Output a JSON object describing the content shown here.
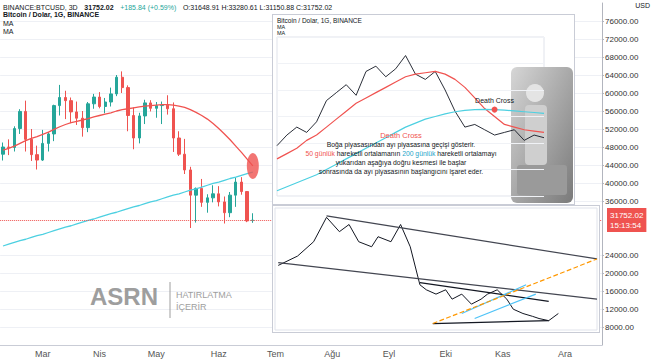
{
  "chart_data": [
    {
      "type": "candlestick",
      "title": "Bitcoin / Dolar, 1G, BINANCE",
      "header": {
        "symbol": "BINANCE:BTCUSD, 3D",
        "last": "31752.02",
        "change": "+185.84 (+0.59%)",
        "ohlc": "O:31648.91 H:33280.61 L:31150.88 C:31752.02"
      },
      "categories": [
        null,
        null,
        null,
        null,
        null,
        null,
        null,
        "Mar",
        null,
        null,
        null,
        null,
        null,
        null,
        null,
        null,
        null,
        "Nis",
        null,
        null,
        null,
        null,
        null,
        null,
        null,
        null,
        null,
        "May",
        null,
        null,
        null,
        null,
        null,
        null,
        null,
        null,
        null,
        null,
        "Haz",
        null,
        null,
        null,
        null,
        null,
        null,
        null,
        null,
        null,
        "Tem",
        null,
        null,
        null,
        null,
        null,
        null,
        null,
        null,
        null,
        "Ağu",
        null,
        null,
        null,
        null,
        null,
        null,
        null,
        null,
        null,
        "Eyl",
        null,
        null,
        null,
        null,
        null,
        null,
        null,
        null,
        null,
        "Eki",
        null,
        null,
        null,
        null,
        null,
        null,
        null,
        null,
        null,
        "Kas",
        null,
        null,
        null,
        null,
        null,
        null,
        null,
        null,
        null,
        null,
        "Ara",
        null,
        null,
        null,
        null,
        null,
        null
      ],
      "values": [
        [
          46400,
          49000,
          45000,
          48000
        ],
        [
          48000,
          49700,
          46200,
          47900
        ],
        [
          47900,
          52600,
          47000,
          52100
        ],
        [
          52100,
          56400,
          50900,
          55900
        ],
        [
          55900,
          58300,
          47000,
          49700
        ],
        [
          49700,
          52000,
          44900,
          46300
        ],
        [
          46300,
          48300,
          43000,
          45100
        ],
        [
          45100,
          51800,
          44900,
          48800
        ],
        [
          48800,
          51300,
          47000,
          50900
        ],
        [
          50900,
          57400,
          49300,
          57200
        ],
        [
          57200,
          61800,
          55000,
          59000
        ],
        [
          59000,
          60500,
          54200,
          58300
        ],
        [
          58300,
          59000,
          53300,
          55800
        ],
        [
          55800,
          58100,
          52900,
          54400
        ],
        [
          54400,
          56000,
          50300,
          52300
        ],
        [
          52300,
          58000,
          51300,
          57600
        ],
        [
          57600,
          59800,
          56500,
          59100
        ],
        [
          59100,
          60200,
          56600,
          57000
        ],
        [
          57000,
          58900,
          55500,
          58000
        ],
        [
          58000,
          61200,
          57000,
          59800
        ],
        [
          59800,
          64000,
          59300,
          63500
        ],
        [
          63500,
          64800,
          60000,
          61200
        ],
        [
          61200,
          61700,
          51500,
          55000
        ],
        [
          55000,
          56800,
          47500,
          50000
        ],
        [
          50000,
          55600,
          48800,
          54900
        ],
        [
          54900,
          58500,
          53100,
          57800
        ],
        [
          57800,
          58400,
          55900,
          56600
        ],
        [
          56600,
          58000,
          54500,
          57200
        ],
        [
          57200,
          58100,
          53100,
          57300
        ],
        [
          57300,
          59500,
          55200,
          56500
        ],
        [
          56500,
          57900,
          46900,
          50000
        ],
        [
          50000,
          51500,
          46000,
          46400
        ],
        [
          46400,
          49800,
          42000,
          42900
        ],
        [
          42900,
          43600,
          30000,
          37300
        ],
        [
          37300,
          39000,
          31200,
          38800
        ],
        [
          38800,
          40900,
          34700,
          35700
        ],
        [
          35700,
          37500,
          33400,
          36700
        ],
        [
          36700,
          39500,
          35700,
          37600
        ],
        [
          37600,
          39300,
          34800,
          35800
        ],
        [
          35800,
          37000,
          31000,
          33400
        ],
        [
          33400,
          38000,
          32400,
          37300
        ],
        [
          37300,
          41200,
          34700,
          40200
        ],
        [
          40200,
          41300,
          37400,
          38100
        ],
        [
          38100,
          38200,
          31300,
          31566.18
        ],
        [
          31648.91,
          33280.61,
          31150.88,
          31752.02
        ],
        null,
        null,
        null,
        null,
        null,
        null,
        null,
        null,
        null,
        null,
        null,
        null,
        null,
        null,
        null,
        null,
        null,
        null,
        null,
        null,
        null,
        null,
        null,
        null,
        null,
        null,
        null,
        null,
        null,
        null,
        null,
        null,
        null,
        null,
        null,
        null,
        null,
        null,
        null,
        null,
        null,
        null,
        null,
        null,
        null,
        null,
        null,
        null,
        null,
        null,
        null,
        null,
        null,
        null,
        null,
        null,
        null,
        null,
        null,
        null,
        null
      ],
      "series": [
        {
          "name": "MA",
          "type": "line",
          "color": "#f05350",
          "values": [
            47300,
            47700,
            48200,
            48800,
            49400,
            49900,
            50300,
            50800,
            51300,
            51900,
            52500,
            53000,
            53400,
            53700,
            54000,
            54300,
            54700,
            55000,
            55300,
            55600,
            56000,
            56300,
            56500,
            56700,
            56900,
            57100,
            57200,
            57300,
            57400,
            57400,
            57300,
            57100,
            56800,
            56300,
            55700,
            55000,
            54200,
            53200,
            52100,
            50900,
            49600,
            48200,
            46800,
            45300,
            43800,
            null,
            null,
            null,
            null,
            null,
            null,
            null,
            null,
            null,
            null,
            null,
            null,
            null,
            null,
            null,
            null,
            null,
            null,
            null,
            null,
            null,
            null,
            null,
            null,
            null,
            null,
            null,
            null,
            null,
            null,
            null,
            null,
            null,
            null,
            null,
            null,
            null,
            null,
            null,
            null,
            null,
            null,
            null,
            null,
            null,
            null,
            null,
            null,
            null,
            null,
            null,
            null,
            null,
            null,
            null,
            null,
            null,
            null,
            null,
            null,
            null
          ]
        },
        {
          "name": "MA",
          "type": "line",
          "color": "#4dd0e1",
          "values": [
            26000,
            26400,
            26800,
            27200,
            27500,
            27900,
            28300,
            28600,
            29000,
            29400,
            29800,
            30200,
            30500,
            30900,
            31300,
            31700,
            32000,
            32400,
            32800,
            33200,
            33500,
            33900,
            34300,
            34700,
            35000,
            35400,
            35800,
            36100,
            36500,
            36900,
            37300,
            37600,
            38000,
            38400,
            38700,
            39100,
            39500,
            39900,
            40200,
            40600,
            41000,
            41300,
            41700,
            42100,
            42400,
            null,
            null,
            null,
            null,
            null,
            null,
            null,
            null,
            null,
            null,
            null,
            null,
            null,
            null,
            null,
            null,
            null,
            null,
            null,
            null,
            null,
            null,
            null,
            null,
            null,
            null,
            null,
            null,
            null,
            null,
            null,
            null,
            null,
            null,
            null,
            null,
            null,
            null,
            null,
            null,
            null,
            null,
            null,
            null,
            null,
            null,
            null,
            null,
            null,
            null,
            null,
            null,
            null,
            null,
            null,
            null,
            null,
            null,
            null,
            null,
            null
          ]
        }
      ],
      "ylabel": "USD",
      "ylim": [
        4000,
        80000
      ],
      "yticks": [
        {
          "value": 8000,
          "label": "8000.00"
        },
        {
          "value": 12000,
          "label": "12000.00"
        },
        {
          "value": 16000,
          "label": "16000.00"
        },
        {
          "value": 20000,
          "label": "20000.00"
        },
        {
          "value": 24000,
          "label": "24000.00"
        },
        {
          "value": 36000,
          "label": "36000.00"
        },
        {
          "value": 40000,
          "label": "40000.00"
        },
        {
          "value": 44000,
          "label": "44000.00"
        },
        {
          "value": 48000,
          "label": "48000.00"
        },
        {
          "value": 52000,
          "label": "52000.00"
        },
        {
          "value": 56000,
          "label": "56000.00"
        },
        {
          "value": 60000,
          "label": "60000.00"
        },
        {
          "value": 64000,
          "label": "64000.00"
        },
        {
          "value": 68000,
          "label": "68000.00"
        },
        {
          "value": 72000,
          "label": "72000.00"
        },
        {
          "value": 76000,
          "label": "76000.00"
        }
      ],
      "grid": true,
      "last_price": {
        "value": 31752.02,
        "label": "31752.02",
        "countdown": "15:13:54"
      }
    },
    {
      "type": "line",
      "title": "Bitcoin / Dolar, 1G, BINANCE",
      "categories": [
        null,
        null,
        null,
        null,
        null,
        null,
        null,
        null,
        null,
        null,
        null,
        null,
        null,
        null,
        null,
        null,
        null,
        null,
        null,
        null,
        null,
        null,
        null,
        null,
        null,
        null,
        null,
        null
      ],
      "series": [
        {
          "color": "#131722",
          "values": [
            29000,
            33000,
            36000,
            34000,
            38000,
            46000,
            49000,
            52000,
            48000,
            57000,
            59000,
            55000,
            58000,
            63000,
            56000,
            54000,
            57000,
            50000,
            42000,
            36000,
            37000,
            35000,
            33000,
            34000,
            35000,
            31000,
            33000,
            32000
          ]
        },
        {
          "name": "MA",
          "color": "#f05350",
          "values": [
            24000,
            26000,
            28000,
            31000,
            33000,
            36000,
            39000,
            42000,
            45000,
            47000,
            49000,
            51000,
            53000,
            55000,
            56000,
            56500,
            57000,
            56000,
            54000,
            51000,
            47000,
            43000,
            40000,
            37000,
            36000,
            35000,
            34500,
            34000
          ]
        },
        {
          "name": "MA",
          "color": "#4dd0e1",
          "values": [
            12000,
            13500,
            15000,
            16500,
            18000,
            20000,
            22000,
            24000,
            26000,
            28000,
            30000,
            32000,
            34000,
            36000,
            37500,
            39000,
            40000,
            41000,
            41800,
            42300,
            42600,
            42700,
            42600,
            42400,
            42100,
            41800,
            41500,
            41200
          ]
        }
      ],
      "ylim": [
        10000,
        70000
      ],
      "yticks": [
        10000,
        20000,
        30000,
        40000,
        50000,
        60000,
        70000
      ],
      "grid": true,
      "tick_labels": false,
      "annotation": "Death Cross",
      "note": {
        "title": "Death Cross",
        "color": "#f05350",
        "lines": [
          [
            {
              "text": "Boğa piyasasından ayı piyasasına geçişi gösterir."
            }
          ],
          [
            {
              "text": "50 günlük",
              "color": "#f05350"
            },
            {
              "text": " hareketli ortalamanın "
            },
            {
              "text": "200 günlük",
              "color": "#26a6c9"
            },
            {
              "text": " hareketli ortalamayı"
            }
          ],
          [
            {
              "text": "yukarıdan aşağıya doğru kesmesi ile başlar"
            }
          ],
          [
            {
              "text": "sonrasında da ayı piyasasının başlangıcını işaret eder."
            }
          ]
        ]
      }
    },
    {
      "type": "line",
      "x": [
        1,
        7,
        12,
        16,
        20,
        23,
        26,
        30,
        32,
        36,
        39,
        42,
        45,
        47,
        50,
        53,
        55,
        58,
        61,
        64,
        66,
        69,
        72,
        74,
        77,
        80,
        82,
        85,
        88
      ],
      "series": [
        {
          "color": "#131722",
          "values": [
            12000,
            13300,
            15300,
            18700,
            16700,
            17700,
            15300,
            14600,
            16000,
            15300,
            17700,
            14600,
            9300,
            8600,
            8000,
            8600,
            7300,
            8000,
            6600,
            7300,
            8000,
            8600,
            7300,
            5900,
            5300,
            4900,
            4600,
            4300,
            5300
          ]
        }
      ],
      "lines": [
        {
          "points": [
            [
              16,
              18900
            ],
            [
              100,
              12900
            ]
          ],
          "color": "#434651",
          "line_style": "solid"
        },
        {
          "points": [
            [
              1,
              12400
            ],
            [
              100,
              7300
            ]
          ],
          "color": "#434651",
          "line_style": "solid"
        },
        {
          "points": [
            [
              45,
              9600
            ],
            [
              85,
              7000
            ]
          ],
          "color": "#131722",
          "line_style": "solid"
        },
        {
          "points": [
            [
              49,
              3900
            ],
            [
              85,
              4300
            ]
          ],
          "color": "#131722",
          "line_style": "solid"
        },
        {
          "points": [
            [
              58,
              5300
            ],
            [
              78,
              9300
            ]
          ],
          "color": "#4fc3f7",
          "line_style": "solid"
        },
        {
          "points": [
            [
              62,
              4600
            ],
            [
              81,
              8000
            ]
          ],
          "color": "#4fc3f7",
          "line_style": "solid"
        },
        {
          "points": [
            [
              49,
              3900
            ],
            [
              100,
              12900
            ]
          ],
          "color": "#ff9800",
          "line_style": "dashed"
        }
      ],
      "xlim": [
        0,
        100
      ],
      "ylim": [
        3000,
        20000
      ],
      "tick_labels": false
    }
  ],
  "watermark": {
    "title": "ASRN",
    "lines": [
      "HATIRLATMA",
      "İÇERİR"
    ]
  }
}
